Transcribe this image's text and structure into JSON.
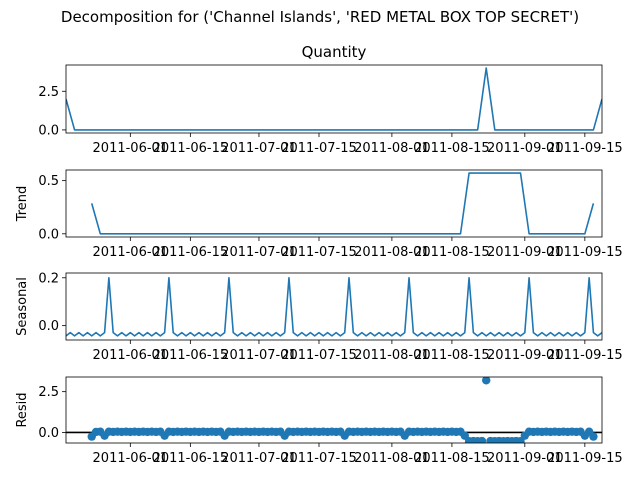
{
  "figure": {
    "suptitle": "Decomposition for ('Channel Islands', 'RED METAL BOX TOP SECRET')",
    "line_color": "#1f77b4",
    "x_start": "2011-05-17",
    "x_end": "2011-09-19"
  },
  "chart_data": [
    {
      "type": "line",
      "title": "Quantity",
      "xlabel": "",
      "ylabel": "",
      "ylim": [
        -0.2,
        4.2
      ],
      "yticks": [
        0.0,
        2.5
      ],
      "ytick_labels": [
        "0.0",
        "2.5"
      ],
      "xticks": [
        "2011-06-01",
        "2011-06-15",
        "2011-07-01",
        "2011-07-15",
        "2011-08-01",
        "2011-08-15",
        "2011-09-01",
        "2011-09-15"
      ],
      "xtick_labels": [
        "2011-06-01",
        "2011-06-15",
        "2011-07-01",
        "2011-07-15",
        "2011-08-01",
        "2011-08-15",
        "2011-09-01",
        "2011-09-15"
      ],
      "series": [
        {
          "points": [
            [
              "2011-05-17",
              2.0
            ],
            [
              "2011-05-19",
              0.0
            ],
            [
              "2011-08-21",
              0.0
            ],
            [
              "2011-08-23",
              4.0
            ],
            [
              "2011-08-25",
              0.0
            ],
            [
              "2011-09-17",
              0.0
            ],
            [
              "2011-09-19",
              2.0
            ]
          ]
        }
      ]
    },
    {
      "type": "line",
      "title": "",
      "xlabel": "",
      "ylabel": "Trend",
      "ylim": [
        -0.03,
        0.6
      ],
      "yticks": [
        0.0,
        0.5
      ],
      "ytick_labels": [
        "0.0",
        "0.5"
      ],
      "xticks": [
        "2011-06-01",
        "2011-06-15",
        "2011-07-01",
        "2011-07-15",
        "2011-08-01",
        "2011-08-15",
        "2011-09-01",
        "2011-09-15"
      ],
      "xtick_labels": [
        "2011-06-01",
        "2011-06-15",
        "2011-07-01",
        "2011-07-15",
        "2011-08-01",
        "2011-08-15",
        "2011-09-01",
        "2011-09-15"
      ],
      "series": [
        {
          "points": [
            [
              "2011-05-23",
              0.286
            ],
            [
              "2011-05-25",
              0.0
            ],
            [
              "2011-08-17",
              0.0
            ],
            [
              "2011-08-19",
              0.571
            ],
            [
              "2011-08-31",
              0.571
            ],
            [
              "2011-09-02",
              0.0
            ],
            [
              "2011-09-15",
              0.0
            ],
            [
              "2011-09-17",
              0.286
            ]
          ]
        }
      ]
    },
    {
      "type": "line",
      "title": "",
      "xlabel": "",
      "ylabel": "Seasonal",
      "ylim": [
        -0.06,
        0.22
      ],
      "yticks": [
        0.0,
        0.2
      ],
      "ytick_labels": [
        "0.0",
        "0.2"
      ],
      "xticks": [
        "2011-06-01",
        "2011-06-15",
        "2011-07-01",
        "2011-07-15",
        "2011-08-01",
        "2011-08-15",
        "2011-09-01",
        "2011-09-15"
      ],
      "xtick_labels": [
        "2011-06-01",
        "2011-06-15",
        "2011-07-01",
        "2011-07-15",
        "2011-08-01",
        "2011-08-15",
        "2011-09-01",
        "2011-09-15"
      ],
      "series": [
        {
          "start_date": "2011-05-17",
          "step_days": 1,
          "period_pattern": [
            -0.029,
            -0.043,
            -0.029,
            -0.043,
            -0.029,
            -0.043,
            -0.029,
            -0.043,
            -0.029,
            -0.043,
            -0.029,
            -0.043,
            -0.029,
            0.2
          ],
          "pattern_offset": 3
        }
      ]
    },
    {
      "type": "scatter",
      "title": "",
      "xlabel": "",
      "ylabel": "Resid",
      "ylim": [
        -0.65,
        3.4
      ],
      "yticks": [
        0.0,
        2.5
      ],
      "ytick_labels": [
        "0.0",
        "2.5"
      ],
      "xticks": [
        "2011-06-01",
        "2011-06-15",
        "2011-07-01",
        "2011-07-15",
        "2011-08-01",
        "2011-08-15",
        "2011-09-01",
        "2011-09-15"
      ],
      "xtick_labels": [
        "2011-06-01",
        "2011-06-15",
        "2011-07-01",
        "2011-07-15",
        "2011-08-01",
        "2011-08-15",
        "2011-09-01",
        "2011-09-15"
      ],
      "zero_line": true,
      "series": [
        {
          "points": [
            [
              "2011-05-23",
              -0.257
            ],
            [
              "2011-05-24",
              0.029
            ],
            [
              "2011-05-25",
              0.043
            ],
            [
              "2011-05-26",
              -0.2
            ],
            [
              "2011-05-27",
              0.043
            ],
            [
              "2011-05-28",
              0.029
            ],
            [
              "2011-05-29",
              0.043
            ],
            [
              "2011-05-30",
              0.029
            ],
            [
              "2011-05-31",
              0.043
            ],
            [
              "2011-06-01",
              0.029
            ],
            [
              "2011-06-02",
              0.043
            ],
            [
              "2011-06-03",
              0.029
            ],
            [
              "2011-06-04",
              0.043
            ],
            [
              "2011-06-05",
              0.029
            ],
            [
              "2011-06-06",
              0.043
            ],
            [
              "2011-06-07",
              0.029
            ],
            [
              "2011-06-08",
              0.043
            ],
            [
              "2011-06-09",
              -0.2
            ],
            [
              "2011-06-10",
              0.043
            ],
            [
              "2011-06-11",
              0.029
            ],
            [
              "2011-06-12",
              0.043
            ],
            [
              "2011-06-13",
              0.029
            ],
            [
              "2011-06-14",
              0.043
            ],
            [
              "2011-06-15",
              0.029
            ],
            [
              "2011-06-16",
              0.043
            ],
            [
              "2011-06-17",
              0.029
            ],
            [
              "2011-06-18",
              0.043
            ],
            [
              "2011-06-19",
              0.029
            ],
            [
              "2011-06-20",
              0.043
            ],
            [
              "2011-06-21",
              0.029
            ],
            [
              "2011-06-22",
              0.043
            ],
            [
              "2011-06-23",
              -0.2
            ],
            [
              "2011-06-24",
              0.043
            ],
            [
              "2011-06-25",
              0.029
            ],
            [
              "2011-06-26",
              0.043
            ],
            [
              "2011-06-27",
              0.029
            ],
            [
              "2011-06-28",
              0.043
            ],
            [
              "2011-06-29",
              0.029
            ],
            [
              "2011-06-30",
              0.043
            ],
            [
              "2011-07-01",
              0.029
            ],
            [
              "2011-07-02",
              0.043
            ],
            [
              "2011-07-03",
              0.029
            ],
            [
              "2011-07-04",
              0.043
            ],
            [
              "2011-07-05",
              0.029
            ],
            [
              "2011-07-06",
              0.043
            ],
            [
              "2011-07-07",
              -0.2
            ],
            [
              "2011-07-08",
              0.043
            ],
            [
              "2011-07-09",
              0.029
            ],
            [
              "2011-07-10",
              0.043
            ],
            [
              "2011-07-11",
              0.029
            ],
            [
              "2011-07-12",
              0.043
            ],
            [
              "2011-07-13",
              0.029
            ],
            [
              "2011-07-14",
              0.043
            ],
            [
              "2011-07-15",
              0.029
            ],
            [
              "2011-07-16",
              0.043
            ],
            [
              "2011-07-17",
              0.029
            ],
            [
              "2011-07-18",
              0.043
            ],
            [
              "2011-07-19",
              0.029
            ],
            [
              "2011-07-20",
              0.043
            ],
            [
              "2011-07-21",
              -0.2
            ],
            [
              "2011-07-22",
              0.043
            ],
            [
              "2011-07-23",
              0.029
            ],
            [
              "2011-07-24",
              0.043
            ],
            [
              "2011-07-25",
              0.029
            ],
            [
              "2011-07-26",
              0.043
            ],
            [
              "2011-07-27",
              0.029
            ],
            [
              "2011-07-28",
              0.043
            ],
            [
              "2011-07-29",
              0.029
            ],
            [
              "2011-07-30",
              0.043
            ],
            [
              "2011-07-31",
              0.029
            ],
            [
              "2011-08-01",
              0.043
            ],
            [
              "2011-08-02",
              0.029
            ],
            [
              "2011-08-03",
              0.043
            ],
            [
              "2011-08-04",
              -0.2
            ],
            [
              "2011-08-05",
              0.043
            ],
            [
              "2011-08-06",
              0.029
            ],
            [
              "2011-08-07",
              0.043
            ],
            [
              "2011-08-08",
              0.029
            ],
            [
              "2011-08-09",
              0.043
            ],
            [
              "2011-08-10",
              0.029
            ],
            [
              "2011-08-11",
              0.043
            ],
            [
              "2011-08-12",
              0.029
            ],
            [
              "2011-08-13",
              0.043
            ],
            [
              "2011-08-14",
              0.029
            ],
            [
              "2011-08-15",
              0.043
            ],
            [
              "2011-08-16",
              0.029
            ],
            [
              "2011-08-17",
              0.043
            ],
            [
              "2011-08-18",
              -0.2
            ],
            [
              "2011-08-19",
              -0.543
            ],
            [
              "2011-08-20",
              -0.529
            ],
            [
              "2011-08-21",
              -0.543
            ],
            [
              "2011-08-22",
              -0.529
            ],
            [
              "2011-08-23",
              3.2
            ],
            [
              "2011-08-24",
              -0.529
            ],
            [
              "2011-08-25",
              -0.543
            ],
            [
              "2011-08-26",
              -0.529
            ],
            [
              "2011-08-27",
              -0.543
            ],
            [
              "2011-08-28",
              -0.529
            ],
            [
              "2011-08-29",
              -0.543
            ],
            [
              "2011-08-30",
              -0.529
            ],
            [
              "2011-08-31",
              -0.543
            ],
            [
              "2011-09-01",
              -0.2
            ],
            [
              "2011-09-02",
              0.043
            ],
            [
              "2011-09-03",
              0.029
            ],
            [
              "2011-09-04",
              0.043
            ],
            [
              "2011-09-05",
              0.029
            ],
            [
              "2011-09-06",
              0.043
            ],
            [
              "2011-09-07",
              0.029
            ],
            [
              "2011-09-08",
              0.043
            ],
            [
              "2011-09-09",
              0.029
            ],
            [
              "2011-09-10",
              0.043
            ],
            [
              "2011-09-11",
              0.029
            ],
            [
              "2011-09-12",
              0.043
            ],
            [
              "2011-09-13",
              0.029
            ],
            [
              "2011-09-14",
              0.043
            ],
            [
              "2011-09-15",
              -0.2
            ],
            [
              "2011-09-16",
              0.043
            ],
            [
              "2011-09-17",
              -0.257
            ]
          ]
        }
      ]
    }
  ]
}
